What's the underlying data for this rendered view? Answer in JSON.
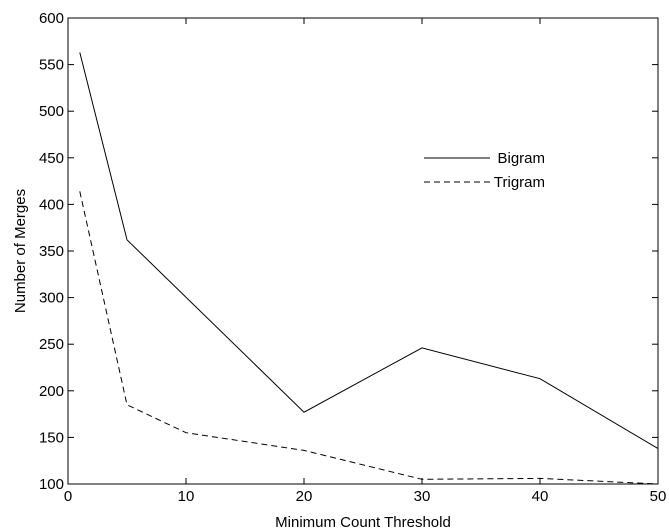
{
  "chart_data": {
    "type": "line",
    "title": "",
    "xlabel": "Minimum Count Threshold",
    "ylabel": "Number of Merges",
    "xlim": [
      0,
      50
    ],
    "ylim": [
      100,
      600
    ],
    "xticks": [
      0,
      10,
      20,
      30,
      40,
      50
    ],
    "yticks": [
      100,
      150,
      200,
      250,
      300,
      350,
      400,
      450,
      500,
      550,
      600
    ],
    "grid": false,
    "legend_position": "upper-right",
    "series": [
      {
        "name": "Bigram",
        "line_style": "solid",
        "color": "#000000",
        "x": [
          1,
          5,
          20,
          30,
          40,
          50
        ],
        "y": [
          563,
          362,
          177,
          246,
          213,
          138
        ]
      },
      {
        "name": "Trigram",
        "line_style": "dashed",
        "color": "#000000",
        "x": [
          1,
          5,
          10,
          20,
          30,
          40,
          50
        ],
        "y": [
          414,
          185,
          155,
          136,
          105,
          106,
          100
        ]
      }
    ]
  }
}
